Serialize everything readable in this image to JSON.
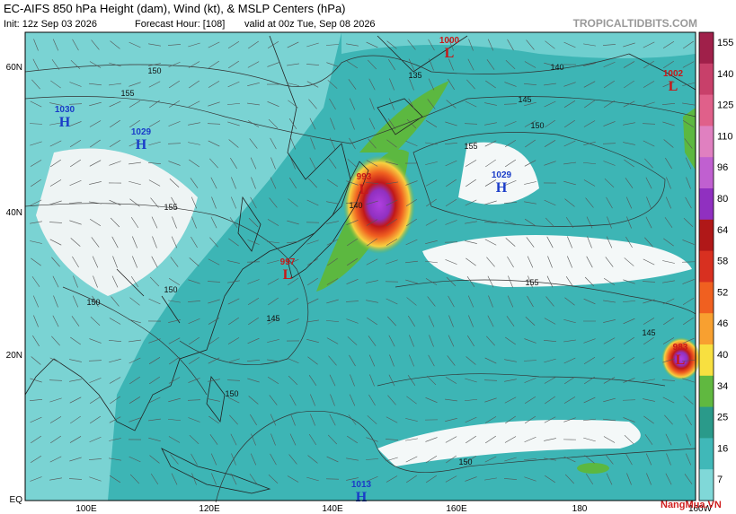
{
  "header": {
    "title": "EC-AIFS 850 hPa Height (dam), Wind (kt), & MSLP Centers (hPa)",
    "init": "Init: 12z Sep 03 2026",
    "forecast_hour": "Forecast Hour: [108]",
    "valid": "valid at 00z Tue, Sep 08 2026",
    "source": "TROPICALTIDBITS.COM"
  },
  "axes": {
    "longitudes": [
      "100E",
      "120E",
      "140E",
      "160E",
      "180",
      "160W"
    ],
    "latitudes": [
      "60N",
      "40N",
      "20N",
      "EQ"
    ]
  },
  "pressure_centers": [
    {
      "letter": "H",
      "value": "1030"
    },
    {
      "letter": "H",
      "value": "1029"
    },
    {
      "letter": "L",
      "value": "1000"
    },
    {
      "letter": "L",
      "value": "1002"
    },
    {
      "letter": "L",
      "value": "993"
    },
    {
      "letter": "H",
      "value": "1029"
    },
    {
      "letter": "L",
      "value": "997"
    },
    {
      "letter": "L",
      "value": "983"
    },
    {
      "letter": "H",
      "value": "1013"
    }
  ],
  "contour_labels": [
    "150",
    "155",
    "135",
    "140",
    "145",
    "150",
    "155",
    "155",
    "150",
    "150",
    "145",
    "140",
    "155",
    "150",
    "145",
    "150"
  ],
  "colorbar": {
    "labels": [
      "155",
      "140",
      "125",
      "110",
      "96",
      "80",
      "64",
      "58",
      "52",
      "46",
      "40",
      "34",
      "25",
      "16",
      "7"
    ],
    "colors": [
      "#a0204a",
      "#c8406a",
      "#e0608a",
      "#e080c0",
      "#c060d0",
      "#9030c0",
      "#b01818",
      "#d83020",
      "#f06020",
      "#f8a030",
      "#f8e040",
      "#60b840",
      "#2a9a8a",
      "#40b8b8",
      "#80d8d8"
    ]
  },
  "watermark": "NangMua.VN"
}
